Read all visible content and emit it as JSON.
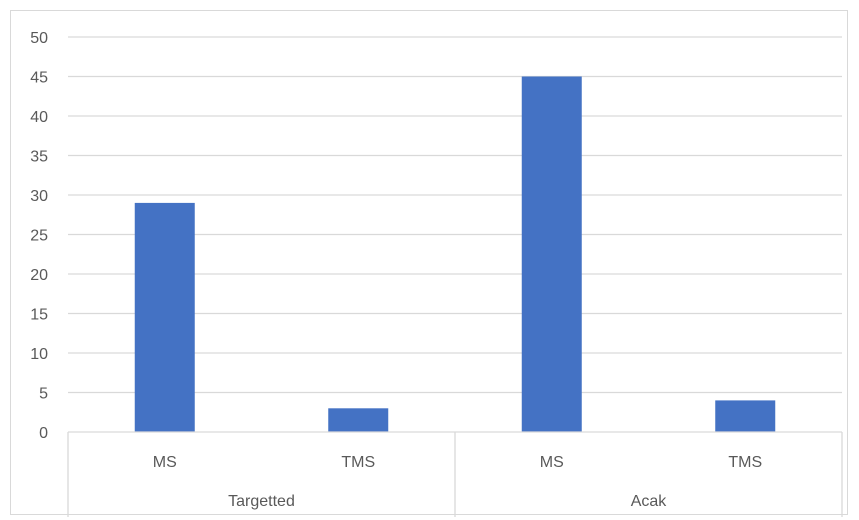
{
  "chart_data": {
    "type": "bar",
    "title": "",
    "xlabel": "",
    "ylabel": "",
    "ylim": [
      0,
      50
    ],
    "y_ticks": [
      "0",
      "5",
      "10",
      "15",
      "20",
      "25",
      "30",
      "35",
      "40",
      "45",
      "50"
    ],
    "grid": true,
    "legend": "none",
    "groups": [
      {
        "name": "Targetted",
        "categories": [
          "MS",
          "TMS"
        ],
        "values": [
          29,
          3
        ]
      },
      {
        "name": "Acak",
        "categories": [
          "MS",
          "TMS"
        ],
        "values": [
          45,
          4
        ]
      }
    ],
    "bar_color": "#4472C4",
    "grid_color": "#d9d9d9",
    "text_color": "#595959"
  }
}
